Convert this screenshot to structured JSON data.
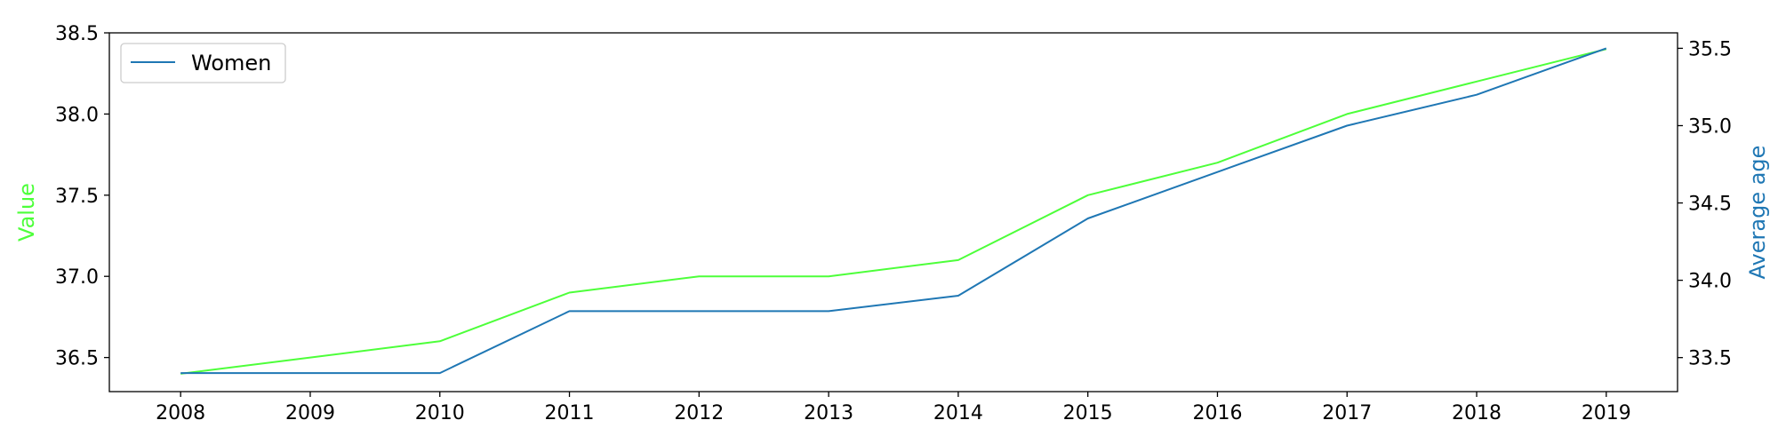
{
  "chart_data": {
    "type": "line",
    "x": [
      2008,
      2009,
      2010,
      2011,
      2012,
      2013,
      2014,
      2015,
      2016,
      2017,
      2018,
      2019
    ],
    "series": [
      {
        "axis": "left",
        "color": "#4dff3a",
        "values": [
          36.4,
          36.5,
          36.6,
          36.9,
          37.0,
          37.0,
          37.1,
          37.5,
          37.7,
          38.0,
          38.2,
          38.4
        ]
      },
      {
        "name": "Women",
        "axis": "right",
        "color": "#1f77b4",
        "values": [
          33.4,
          33.4,
          33.4,
          33.8,
          33.8,
          33.8,
          33.9,
          34.4,
          34.7,
          35.0,
          35.2,
          35.5
        ]
      }
    ],
    "ylabel": "Value",
    "ylabel_color": "#4dff3a",
    "y2label": "Average age",
    "y2label_color": "#1f77b4",
    "ylim": [
      36.29,
      38.5
    ],
    "y2lim": [
      33.28,
      35.6
    ],
    "yticks": [
      "36.5",
      "37.0",
      "37.5",
      "38.0",
      "38.5"
    ],
    "y2ticks": [
      "33.5",
      "34.0",
      "34.5",
      "35.0",
      "35.5"
    ],
    "xticks": [
      "2008",
      "2009",
      "2010",
      "2011",
      "2012",
      "2013",
      "2014",
      "2015",
      "2016",
      "2017",
      "2018",
      "2019"
    ],
    "legend_position": "top-left",
    "grid": false
  }
}
